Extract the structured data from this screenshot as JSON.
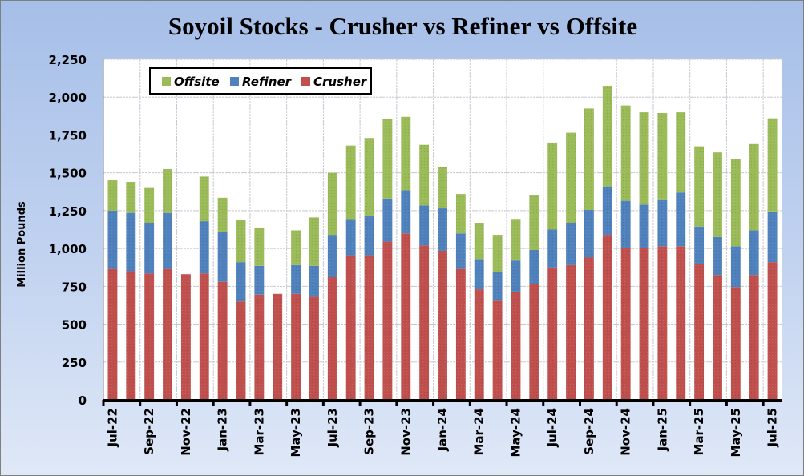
{
  "chart_data": {
    "type": "bar",
    "stacked": true,
    "title": "Soyoil Stocks - Crusher vs Refiner vs Offsite",
    "xlabel": "",
    "ylabel": "Million Pounds",
    "ylim": [
      0,
      2250
    ],
    "yticks": [
      0,
      250,
      500,
      750,
      1000,
      1250,
      1500,
      1750,
      2000,
      2250
    ],
    "ytick_labels": [
      "0",
      "250",
      "500",
      "750",
      "1,000",
      "1,250",
      "1,500",
      "1,750",
      "2,000",
      "2,250"
    ],
    "grid": true,
    "legend_position": "top-left",
    "legend": [
      "Offsite",
      "Refiner",
      "Crusher"
    ],
    "categories": [
      "Jul-22",
      "Aug-22",
      "Sep-22",
      "Oct-22",
      "Nov-22",
      "Dec-22",
      "Jan-23",
      "Feb-23",
      "Mar-23",
      "Apr-23",
      "May-23",
      "Jun-23",
      "Jul-23",
      "Aug-23",
      "Sep-23",
      "Oct-23",
      "Nov-23",
      "Dec-23",
      "Jan-24",
      "Feb-24",
      "Mar-24",
      "Apr-24",
      "May-24",
      "Jun-24",
      "Jul-24",
      "Aug-24",
      "Sep-24",
      "Oct-24",
      "Nov-24",
      "Dec-24",
      "Jan-25",
      "Feb-25",
      "Mar-25",
      "Apr-25",
      "May-25",
      "Jun-25",
      "Jul-25"
    ],
    "xtick_labels": [
      "Jul-22",
      "Sep-22",
      "Nov-22",
      "Jan-23",
      "Mar-23",
      "May-23",
      "Jul-23",
      "Sep-23",
      "Nov-23",
      "Jan-24",
      "Mar-24",
      "May-24",
      "Jul-24",
      "Sep-24",
      "Nov-24",
      "Jan-25",
      "Mar-25",
      "May-25",
      "Jul-25"
    ],
    "series": [
      {
        "name": "Crusher",
        "color": "#c0504d",
        "values": [
          865,
          850,
          835,
          865,
          830,
          835,
          780,
          650,
          695,
          700,
          700,
          680,
          810,
          955,
          955,
          1045,
          1100,
          1020,
          985,
          865,
          730,
          660,
          715,
          765,
          875,
          890,
          940,
          1090,
          1005,
          1005,
          1015,
          1015,
          895,
          825,
          745,
          825,
          910
        ]
      },
      {
        "name": "Refiner",
        "color": "#4f81bd",
        "values": [
          385,
          385,
          335,
          370,
          0,
          345,
          330,
          260,
          190,
          0,
          190,
          205,
          280,
          240,
          260,
          285,
          285,
          265,
          280,
          235,
          200,
          185,
          205,
          225,
          250,
          280,
          315,
          320,
          310,
          285,
          310,
          355,
          250,
          250,
          270,
          295,
          335
        ]
      },
      {
        "name": "Offsite",
        "color": "#9bbb59",
        "values": [
          200,
          205,
          235,
          290,
          0,
          295,
          225,
          280,
          250,
          0,
          230,
          320,
          410,
          485,
          515,
          525,
          485,
          400,
          275,
          260,
          240,
          245,
          275,
          365,
          575,
          595,
          670,
          665,
          630,
          610,
          570,
          530,
          530,
          560,
          575,
          570,
          615
        ]
      }
    ]
  }
}
